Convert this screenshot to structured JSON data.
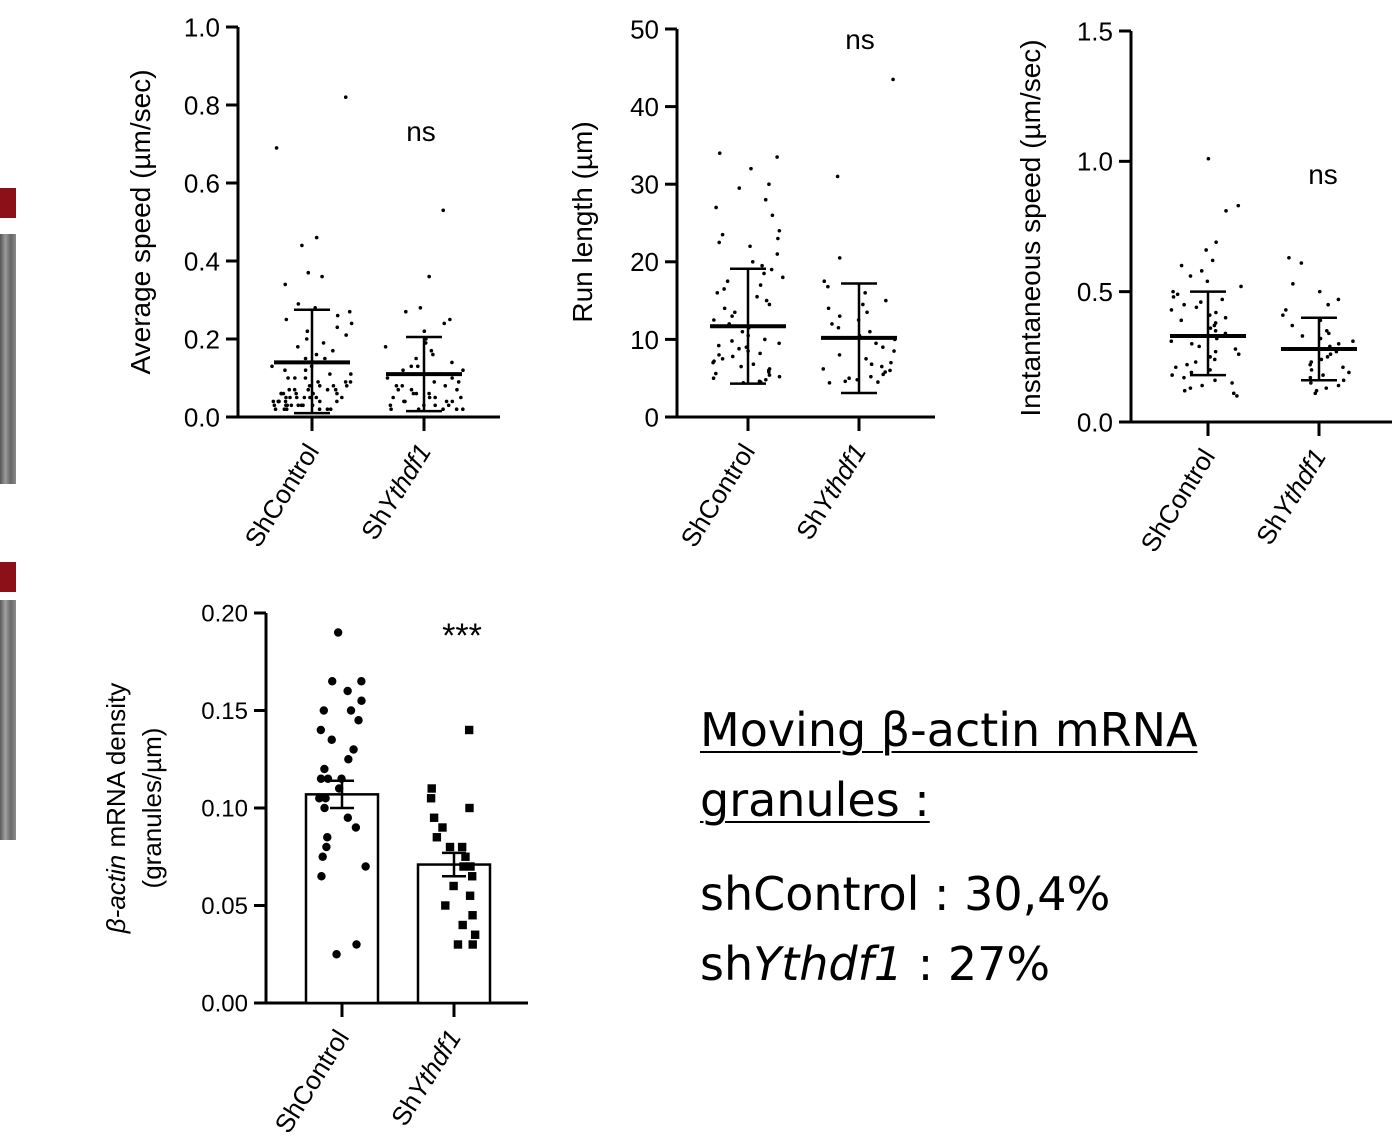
{
  "chart_data": [
    {
      "type": "scatter",
      "panel": "average-speed",
      "ylabel": "Average speed (µm/sec)",
      "ylim": [
        0,
        1.0
      ],
      "yticks": [
        "0.0",
        "0.2",
        "0.4",
        "0.6",
        "0.8",
        "1.0"
      ],
      "categories": [
        "ShControl",
        "ShYthdf1"
      ],
      "category_parts": [
        [
          "Sh",
          ""
        ],
        [
          "Sh",
          "Ythdf1"
        ]
      ],
      "annotation": "ns",
      "series": [
        {
          "category": "ShControl",
          "mean": 0.14,
          "sd": [
            0.01,
            0.275
          ],
          "points": [
            0.82,
            0.69,
            0.46,
            0.44,
            0.37,
            0.36,
            0.34,
            0.29,
            0.28,
            0.27,
            0.26,
            0.25,
            0.24,
            0.23,
            0.22,
            0.21,
            0.2,
            0.19,
            0.18,
            0.17,
            0.16,
            0.15,
            0.15,
            0.14,
            0.14,
            0.13,
            0.13,
            0.12,
            0.12,
            0.11,
            0.11,
            0.1,
            0.1,
            0.1,
            0.09,
            0.09,
            0.09,
            0.08,
            0.08,
            0.08,
            0.08,
            0.07,
            0.07,
            0.07,
            0.07,
            0.07,
            0.06,
            0.06,
            0.06,
            0.06,
            0.06,
            0.06,
            0.05,
            0.05,
            0.05,
            0.05,
            0.05,
            0.05,
            0.05,
            0.04,
            0.04,
            0.04,
            0.04,
            0.04,
            0.04,
            0.04,
            0.03,
            0.03,
            0.03,
            0.03,
            0.03,
            0.03,
            0.03,
            0.03,
            0.02,
            0.02,
            0.02,
            0.02,
            0.02,
            0.02
          ]
        },
        {
          "category": "ShYthdf1",
          "mean": 0.11,
          "sd": [
            0.015,
            0.205
          ],
          "points": [
            0.53,
            0.36,
            0.28,
            0.27,
            0.25,
            0.24,
            0.22,
            0.2,
            0.19,
            0.18,
            0.17,
            0.16,
            0.15,
            0.14,
            0.13,
            0.13,
            0.12,
            0.12,
            0.11,
            0.11,
            0.1,
            0.1,
            0.09,
            0.09,
            0.08,
            0.08,
            0.08,
            0.07,
            0.07,
            0.07,
            0.06,
            0.06,
            0.06,
            0.05,
            0.05,
            0.05,
            0.05,
            0.04,
            0.04,
            0.04,
            0.04,
            0.03,
            0.03,
            0.03,
            0.03,
            0.02,
            0.02,
            0.02,
            0.02,
            0.02
          ]
        }
      ]
    },
    {
      "type": "scatter",
      "panel": "run-length",
      "ylabel": "Run length (µm)",
      "ylim": [
        0,
        50
      ],
      "yticks": [
        "0",
        "10",
        "20",
        "30",
        "40",
        "50"
      ],
      "categories": [
        "ShControl",
        "ShYthdf1"
      ],
      "category_parts": [
        [
          "Sh",
          ""
        ],
        [
          "Sh",
          "Ythdf1"
        ]
      ],
      "annotation": "ns",
      "series": [
        {
          "category": "ShControl",
          "mean": 11.7,
          "sd": [
            4.3,
            19.1
          ],
          "points": [
            34,
            33.5,
            32,
            30,
            29.5,
            28,
            27,
            26,
            24,
            23.5,
            23,
            22.5,
            22,
            21,
            20,
            19.5,
            19,
            18.5,
            18,
            17.5,
            17,
            16.5,
            16,
            15.5,
            15,
            14.5,
            14,
            13.5,
            13,
            12.5,
            12,
            11.5,
            11,
            10.5,
            10,
            9.8,
            9.5,
            9.2,
            9,
            8.8,
            8.5,
            8.2,
            8,
            7.8,
            7.5,
            7.2,
            7,
            6.8,
            6.5,
            6.2,
            6,
            5.8,
            5.6,
            5.4,
            5.2,
            5,
            4.8,
            4.6,
            4.5,
            4.4
          ]
        },
        {
          "category": "ShYthdf1",
          "mean": 10.2,
          "sd": [
            3.1,
            17.2
          ],
          "points": [
            43.5,
            31,
            20.5,
            17.5,
            16.8,
            16,
            15,
            14.5,
            14,
            13.5,
            13,
            12.5,
            12,
            11.5,
            11,
            10.5,
            10,
            9.5,
            9,
            8.5,
            8,
            7.5,
            7,
            6.8,
            6.5,
            6.2,
            6,
            5.8,
            5.5,
            5.2,
            5,
            4.8,
            4.6,
            4.5,
            4.4
          ]
        }
      ]
    },
    {
      "type": "scatter",
      "panel": "instantaneous-speed",
      "ylabel": "Instantaneous speed (µm/sec)",
      "ylim": [
        0,
        1.5
      ],
      "yticks": [
        "0.0",
        "0.5",
        "1.0",
        "1.5"
      ],
      "categories": [
        "ShControl",
        "ShYthdf1"
      ],
      "category_parts": [
        [
          "Sh",
          ""
        ],
        [
          "Sh",
          "Ythdf1"
        ]
      ],
      "annotation": "ns",
      "series": [
        {
          "category": "ShControl",
          "mean": 0.33,
          "sd": [
            0.18,
            0.5
          ],
          "points": [
            1.01,
            0.83,
            0.81,
            0.69,
            0.66,
            0.62,
            0.6,
            0.58,
            0.56,
            0.54,
            0.52,
            0.5,
            0.49,
            0.48,
            0.47,
            0.46,
            0.45,
            0.44,
            0.43,
            0.42,
            0.41,
            0.4,
            0.39,
            0.38,
            0.37,
            0.36,
            0.35,
            0.34,
            0.33,
            0.32,
            0.31,
            0.3,
            0.29,
            0.28,
            0.27,
            0.26,
            0.25,
            0.24,
            0.23,
            0.22,
            0.21,
            0.2,
            0.19,
            0.18,
            0.17,
            0.16,
            0.15,
            0.14,
            0.13,
            0.12,
            0.11,
            0.1
          ]
        },
        {
          "category": "ShYthdf1",
          "mean": 0.28,
          "sd": [
            0.16,
            0.4
          ],
          "points": [
            0.63,
            0.61,
            0.53,
            0.5,
            0.47,
            0.45,
            0.43,
            0.41,
            0.39,
            0.37,
            0.35,
            0.34,
            0.33,
            0.32,
            0.31,
            0.3,
            0.29,
            0.28,
            0.27,
            0.26,
            0.25,
            0.24,
            0.23,
            0.22,
            0.21,
            0.2,
            0.19,
            0.18,
            0.17,
            0.16,
            0.15,
            0.14,
            0.13,
            0.12,
            0.11
          ]
        }
      ]
    },
    {
      "type": "bar",
      "panel": "density",
      "ylabel_parts": [
        {
          "text": "β-actin",
          "italic": true
        },
        {
          "text": " mRNA density",
          "italic": false
        }
      ],
      "ylabel_line2": "(granules/µm)",
      "ylim": [
        0,
        0.2
      ],
      "yticks": [
        "0.00",
        "0.05",
        "0.10",
        "0.15",
        "0.20"
      ],
      "categories": [
        "ShControl",
        "ShYthdf1"
      ],
      "category_parts": [
        [
          "Sh",
          ""
        ],
        [
          "Sh",
          "Ythdf1"
        ]
      ],
      "annotation": "***",
      "series": [
        {
          "category": "ShControl",
          "mean": 0.107,
          "sem": [
            0.1,
            0.114
          ],
          "marker": "circle",
          "points": [
            0.19,
            0.165,
            0.165,
            0.16,
            0.155,
            0.15,
            0.15,
            0.145,
            0.14,
            0.135,
            0.13,
            0.125,
            0.12,
            0.115,
            0.115,
            0.115,
            0.11,
            0.105,
            0.105,
            0.1,
            0.095,
            0.09,
            0.085,
            0.08,
            0.075,
            0.07,
            0.065,
            0.03,
            0.025
          ]
        },
        {
          "category": "ShYthdf1",
          "mean": 0.071,
          "sem": [
            0.065,
            0.077
          ],
          "marker": "square",
          "points": [
            0.14,
            0.11,
            0.105,
            0.1,
            0.095,
            0.09,
            0.085,
            0.08,
            0.08,
            0.075,
            0.07,
            0.07,
            0.065,
            0.06,
            0.055,
            0.05,
            0.045,
            0.04,
            0.035,
            0.03,
            0.03
          ]
        }
      ]
    }
  ],
  "summary": {
    "title": "Moving β-actin mRNA granules :",
    "line1": "shControl : 30,4%",
    "line2_prefix": "sh",
    "line2_italic": "Ythdf1",
    "line2_suffix": " : 27%"
  },
  "colors": {
    "ink": "#000000",
    "strip_red": "#b0141c",
    "strip_gray": "#7a7a7a"
  }
}
